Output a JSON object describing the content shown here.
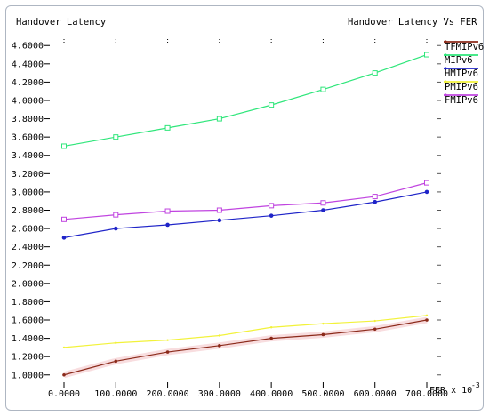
{
  "chart_data": {
    "type": "line",
    "ylabel": "Handover Latency",
    "title": "Handover Latency Vs FER",
    "xlabel": "FER x 10",
    "xlabel_exponent": "-3",
    "x": [
      0,
      100,
      200,
      300,
      400,
      500,
      600,
      700
    ],
    "x_tick_labels": [
      "0.0000",
      "100.0000",
      "200.0000",
      "300.0000",
      "400.0000",
      "500.0000",
      "600.0000",
      "700.0000"
    ],
    "y_tick_values": [
      1.0,
      1.2,
      1.4,
      1.6,
      1.8,
      2.0,
      2.2,
      2.4,
      2.6,
      2.8,
      3.0,
      3.2,
      3.4,
      3.6,
      3.8,
      4.0,
      4.2,
      4.4,
      4.6
    ],
    "y_tick_labels": [
      "1.0000",
      "1.2000",
      "1.4000",
      "1.6000",
      "1.8000",
      "2.0000",
      "2.2000",
      "2.4000",
      "2.6000",
      "2.8000",
      "3.0000",
      "3.2000",
      "3.4000",
      "3.6000",
      "3.8000",
      "4.0000",
      "4.2000",
      "4.4000",
      "4.6000"
    ],
    "ylim": [
      0.92,
      4.68
    ],
    "xlim": [
      0,
      700
    ],
    "grid": false,
    "legend_position": "right",
    "series": [
      {
        "name": "TFMIPv6",
        "color": "#8b2a1a",
        "marker": "dot",
        "values": [
          1.0,
          1.15,
          1.25,
          1.32,
          1.4,
          1.44,
          1.5,
          1.6
        ]
      },
      {
        "name": "MIPv6",
        "color": "#2ee67a",
        "marker": "square",
        "values": [
          3.5,
          3.6,
          3.7,
          3.8,
          3.95,
          4.12,
          4.3,
          4.5
        ]
      },
      {
        "name": "HMIPv6",
        "color": "#1f24c8",
        "marker": "circle",
        "values": [
          2.5,
          2.6,
          2.64,
          2.69,
          2.74,
          2.8,
          2.89,
          3.0
        ]
      },
      {
        "name": "PMIPv6",
        "color": "#f2f23a",
        "marker": "none",
        "values": [
          1.3,
          1.35,
          1.38,
          1.43,
          1.52,
          1.56,
          1.59,
          1.65
        ]
      },
      {
        "name": "FMIPv6",
        "color": "#c044e0",
        "marker": "square",
        "values": [
          2.7,
          2.75,
          2.79,
          2.8,
          2.85,
          2.88,
          2.95,
          3.1
        ]
      }
    ]
  }
}
